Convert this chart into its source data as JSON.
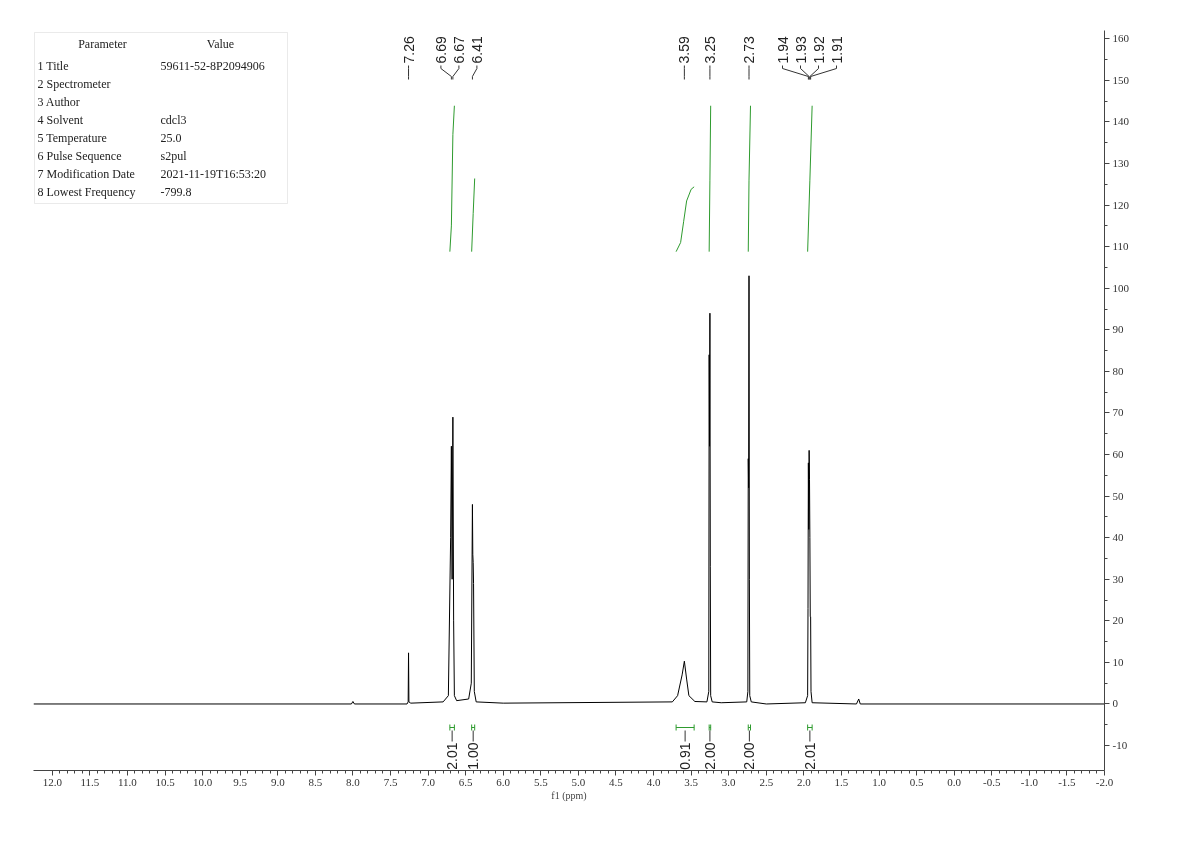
{
  "chart_data": {
    "type": "line",
    "xlabel": "f1 (ppm)",
    "grid": false,
    "xlim": [
      12.25,
      -2.0
    ],
    "ylim": [
      -16,
      162
    ],
    "xticks": [
      {
        "value": 12,
        "label": "12.0"
      },
      11.5,
      {
        "value": 11,
        "label": "11.0"
      },
      10.5,
      {
        "value": 10,
        "label": "10.0"
      },
      9.5,
      {
        "value": 9,
        "label": "9.0"
      },
      8.5,
      {
        "value": 8,
        "label": "8.0"
      },
      7.5,
      {
        "value": 7,
        "label": "7.0"
      },
      6.5,
      {
        "value": 6,
        "label": "6.0"
      },
      5.5,
      {
        "value": 5,
        "label": "5.0"
      },
      4.5,
      {
        "value": 4,
        "label": "4.0"
      },
      3.5,
      {
        "value": 3,
        "label": "3.0"
      },
      2.5,
      {
        "value": 2,
        "label": "2.0"
      },
      1.5,
      {
        "value": 1,
        "label": "1.0"
      },
      0.5,
      {
        "value": 0,
        "label": "0.0"
      },
      -0.5,
      {
        "value": -1,
        "label": "-1.0"
      },
      -1.5,
      {
        "value": -2,
        "label": "-2.0"
      }
    ],
    "yticks": [
      -10,
      0,
      10,
      20,
      30,
      40,
      50,
      60,
      70,
      80,
      90,
      100,
      110,
      120,
      130,
      140,
      150,
      160
    ],
    "series": [
      {
        "color": "#000000",
        "x": [
          12.25,
          8.02,
          8.0,
          7.98,
          7.28,
          7.265,
          7.26,
          7.255,
          7.23,
          6.8,
          6.73,
          6.7,
          6.69,
          6.68,
          6.67,
          6.66,
          6.65,
          6.62,
          6.46,
          6.425,
          6.41,
          6.405,
          6.4,
          6.395,
          6.385,
          6.36,
          6.0,
          3.75,
          3.68,
          3.62,
          3.59,
          3.56,
          3.53,
          3.45,
          3.29,
          3.265,
          3.26,
          3.255,
          3.25,
          3.245,
          3.24,
          3.22,
          3.1,
          2.76,
          2.745,
          2.74,
          2.735,
          2.73,
          2.725,
          2.72,
          2.7,
          2.5,
          1.98,
          1.95,
          1.945,
          1.94,
          1.935,
          1.93,
          1.925,
          1.92,
          1.915,
          1.91,
          1.905,
          1.89,
          1.3,
          1.27,
          1.25,
          -2.0
        ],
        "values": [
          0,
          0,
          0.6,
          0,
          0,
          0.5,
          12.3,
          0.5,
          0.2,
          0.5,
          2,
          40,
          62,
          30,
          69,
          20,
          2,
          0.8,
          1.2,
          5,
          48,
          36,
          34,
          29,
          3,
          0.5,
          0.2,
          0.5,
          2,
          7,
          10.3,
          6,
          2,
          0.6,
          0.5,
          3,
          84,
          62,
          94,
          33,
          2,
          0.5,
          0.3,
          0.5,
          3,
          59,
          52,
          103,
          30,
          2,
          0.5,
          0,
          0.3,
          2,
          23,
          58,
          42,
          61,
          54,
          40,
          21,
          21,
          3,
          0.3,
          0,
          1.2,
          0,
          0
        ]
      },
      {
        "color": "#2e9b2e",
        "x": [
          6.71,
          6.69,
          6.67,
          6.65
        ],
        "values": [
          108.8,
          115,
          137,
          143.9
        ]
      },
      {
        "color": "#2e9b2e",
        "x": [
          6.42,
          6.4,
          6.38
        ],
        "values": [
          108.8,
          118,
          126.4
        ]
      },
      {
        "color": "#2e9b2e",
        "x": [
          3.7,
          3.64,
          3.6,
          3.56,
          3.5,
          3.46
        ],
        "values": [
          108.8,
          111,
          116,
          121,
          123.8,
          124.4
        ]
      },
      {
        "color": "#2e9b2e",
        "x": [
          3.26,
          3.25,
          3.24
        ],
        "values": [
          108.8,
          126,
          143.9
        ]
      },
      {
        "color": "#2e9b2e",
        "x": [
          2.74,
          2.73,
          2.71
        ],
        "values": [
          108.8,
          126,
          143.9
        ]
      },
      {
        "color": "#2e9b2e",
        "x": [
          1.95,
          1.92,
          1.89
        ],
        "values": [
          108.8,
          126,
          143.9
        ]
      }
    ],
    "annotations": [
      "Parameter",
      "Value",
      "1 Title",
      "59611-52-8P2094906",
      "2 Spectrometer",
      null,
      "3 Author",
      null,
      "4 Solvent",
      "cdcl3",
      "5 Temperature",
      "25.0",
      "6 Pulse Sequence",
      "s2pul",
      "7 Modification Date",
      "2021-11-19T16:53:20",
      "8 Lowest Frequency",
      "-799.8",
      {
        "text": "7.26",
        "x": 7.26
      },
      {
        "text": "6.69",
        "x": 6.69
      },
      {
        "text": "6.67",
        "x": 6.67
      },
      {
        "text": "6.41",
        "x": 6.41
      },
      {
        "text": "3.59",
        "x": 3.59
      },
      {
        "text": "3.25",
        "x": 3.25
      },
      {
        "text": "2.73",
        "x": 2.73
      },
      {
        "text": "1.94",
        "x": 1.94
      },
      {
        "text": "1.93",
        "x": 1.93
      },
      {
        "text": "1.92",
        "x": 1.92
      },
      {
        "text": "1.91",
        "x": 1.91
      },
      "2.01",
      "1.00",
      "0.91",
      "2.00",
      "2.00",
      "2.01"
    ]
  }
}
